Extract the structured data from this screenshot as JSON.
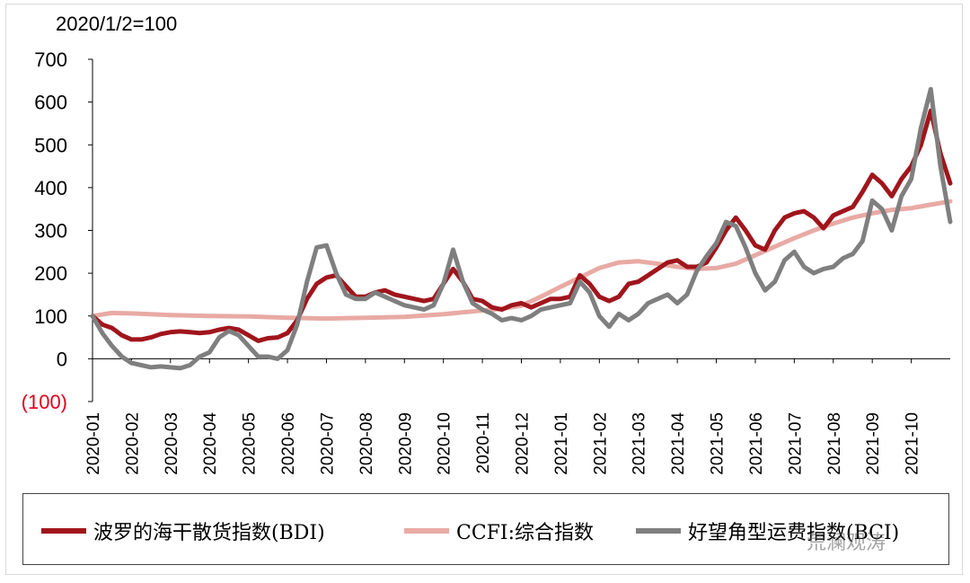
{
  "chart_data": {
    "type": "line",
    "title": "2020/1/2=100",
    "xlabel": "",
    "ylabel": "",
    "ylim": [
      -100,
      700
    ],
    "yticks": [
      700,
      600,
      500,
      400,
      300,
      200,
      100,
      0,
      -100
    ],
    "ytick_labels": [
      "700",
      "600",
      "500",
      "400",
      "300",
      "200",
      "100",
      "0",
      "(100)"
    ],
    "x_range": [
      0,
      22
    ],
    "categories": [
      "2020-01",
      "2020-02",
      "2020-03",
      "2020-04",
      "2020-05",
      "2020-06",
      "2020-07",
      "2020-08",
      "2020-09",
      "2020-10",
      "2020-11",
      "2020-12",
      "2021-01",
      "2021-02",
      "2021-03",
      "2021-04",
      "2021-05",
      "2021-06",
      "2021-07",
      "2021-08",
      "2021-09",
      "2021-10"
    ],
    "grid": false,
    "legend_position": "bottom",
    "series": [
      {
        "name": "波罗的海干散货指数(BDI)",
        "color": "#a0151c",
        "x": [
          0,
          0.25,
          0.5,
          0.75,
          1.0,
          1.25,
          1.5,
          1.75,
          2.0,
          2.25,
          2.5,
          2.75,
          3.0,
          3.25,
          3.5,
          3.75,
          4.0,
          4.25,
          4.5,
          4.75,
          5.0,
          5.25,
          5.5,
          5.75,
          6.0,
          6.25,
          6.5,
          6.75,
          7.0,
          7.25,
          7.5,
          7.75,
          8.0,
          8.25,
          8.5,
          8.75,
          9.0,
          9.25,
          9.5,
          9.75,
          10.0,
          10.25,
          10.5,
          10.75,
          11.0,
          11.25,
          11.5,
          11.75,
          12.0,
          12.25,
          12.5,
          12.75,
          13.0,
          13.25,
          13.5,
          13.75,
          14.0,
          14.25,
          14.5,
          14.75,
          15.0,
          15.25,
          15.5,
          15.75,
          16.0,
          16.25,
          16.5,
          16.75,
          17.0,
          17.25,
          17.5,
          17.75,
          18.0,
          18.25,
          18.5,
          18.75,
          19.0,
          19.25,
          19.5,
          19.75,
          20.0,
          20.25,
          20.5,
          20.75,
          21.0,
          21.25,
          21.5,
          21.75,
          22.0
        ],
        "y": [
          100,
          80,
          72,
          55,
          45,
          45,
          50,
          58,
          62,
          64,
          62,
          60,
          62,
          68,
          72,
          68,
          55,
          42,
          48,
          50,
          60,
          90,
          140,
          175,
          190,
          195,
          170,
          145,
          145,
          155,
          160,
          150,
          145,
          140,
          135,
          140,
          175,
          210,
          180,
          140,
          135,
          120,
          115,
          125,
          130,
          120,
          130,
          140,
          140,
          145,
          195,
          175,
          145,
          135,
          145,
          175,
          180,
          195,
          210,
          225,
          230,
          215,
          215,
          225,
          260,
          300,
          330,
          300,
          265,
          255,
          300,
          330,
          340,
          345,
          330,
          305,
          335,
          345,
          355,
          390,
          430,
          410,
          380,
          420,
          450,
          500,
          580,
          480,
          410
        ]
      },
      {
        "name": "CCFI:综合指数",
        "color": "#e8aaa4",
        "x": [
          0,
          0.5,
          1,
          2,
          3,
          4,
          5,
          6,
          7,
          8,
          9,
          10,
          10.5,
          11,
          11.5,
          12,
          12.5,
          13,
          13.5,
          14,
          14.5,
          15,
          15.5,
          16,
          16.5,
          17,
          17.5,
          18,
          18.5,
          19,
          19.5,
          20,
          20.5,
          21,
          21.5,
          22
        ],
        "y": [
          100,
          107,
          106,
          102,
          100,
          99,
          96,
          94,
          96,
          98,
          104,
          113,
          117,
          124,
          145,
          168,
          190,
          212,
          225,
          228,
          222,
          215,
          210,
          212,
          222,
          242,
          262,
          282,
          300,
          316,
          330,
          340,
          348,
          352,
          360,
          368
        ]
      },
      {
        "name": "好望角型运费指数(BCI)",
        "color": "#7f7f7f",
        "x": [
          0,
          0.25,
          0.5,
          0.75,
          1.0,
          1.25,
          1.5,
          1.75,
          2.0,
          2.25,
          2.5,
          2.75,
          3.0,
          3.25,
          3.5,
          3.75,
          4.0,
          4.25,
          4.5,
          4.75,
          5.0,
          5.25,
          5.5,
          5.75,
          6.0,
          6.25,
          6.5,
          6.75,
          7.0,
          7.25,
          7.5,
          7.75,
          8.0,
          8.25,
          8.5,
          8.75,
          9.0,
          9.25,
          9.5,
          9.75,
          10.0,
          10.25,
          10.5,
          10.75,
          11.0,
          11.25,
          11.5,
          11.75,
          12.0,
          12.25,
          12.5,
          12.75,
          13.0,
          13.25,
          13.5,
          13.75,
          14.0,
          14.25,
          14.5,
          14.75,
          15.0,
          15.25,
          15.5,
          15.75,
          16.0,
          16.25,
          16.5,
          16.75,
          17.0,
          17.25,
          17.5,
          17.75,
          18.0,
          18.25,
          18.5,
          18.75,
          19.0,
          19.25,
          19.5,
          19.75,
          20.0,
          20.25,
          20.5,
          20.75,
          21.0,
          21.25,
          21.5,
          21.75,
          22.0
        ],
        "y": [
          100,
          60,
          30,
          5,
          -10,
          -15,
          -20,
          -18,
          -20,
          -22,
          -15,
          5,
          15,
          50,
          65,
          55,
          30,
          5,
          5,
          0,
          20,
          80,
          180,
          260,
          265,
          200,
          150,
          140,
          140,
          155,
          145,
          135,
          125,
          120,
          115,
          125,
          175,
          255,
          180,
          130,
          115,
          105,
          90,
          95,
          90,
          100,
          115,
          120,
          125,
          130,
          180,
          155,
          100,
          75,
          105,
          90,
          105,
          130,
          140,
          150,
          130,
          150,
          205,
          240,
          270,
          320,
          310,
          260,
          200,
          160,
          180,
          230,
          250,
          215,
          200,
          210,
          215,
          235,
          245,
          275,
          370,
          350,
          300,
          380,
          420,
          540,
          630,
          450,
          320
        ]
      }
    ]
  },
  "watermark": "荒澜观涛"
}
